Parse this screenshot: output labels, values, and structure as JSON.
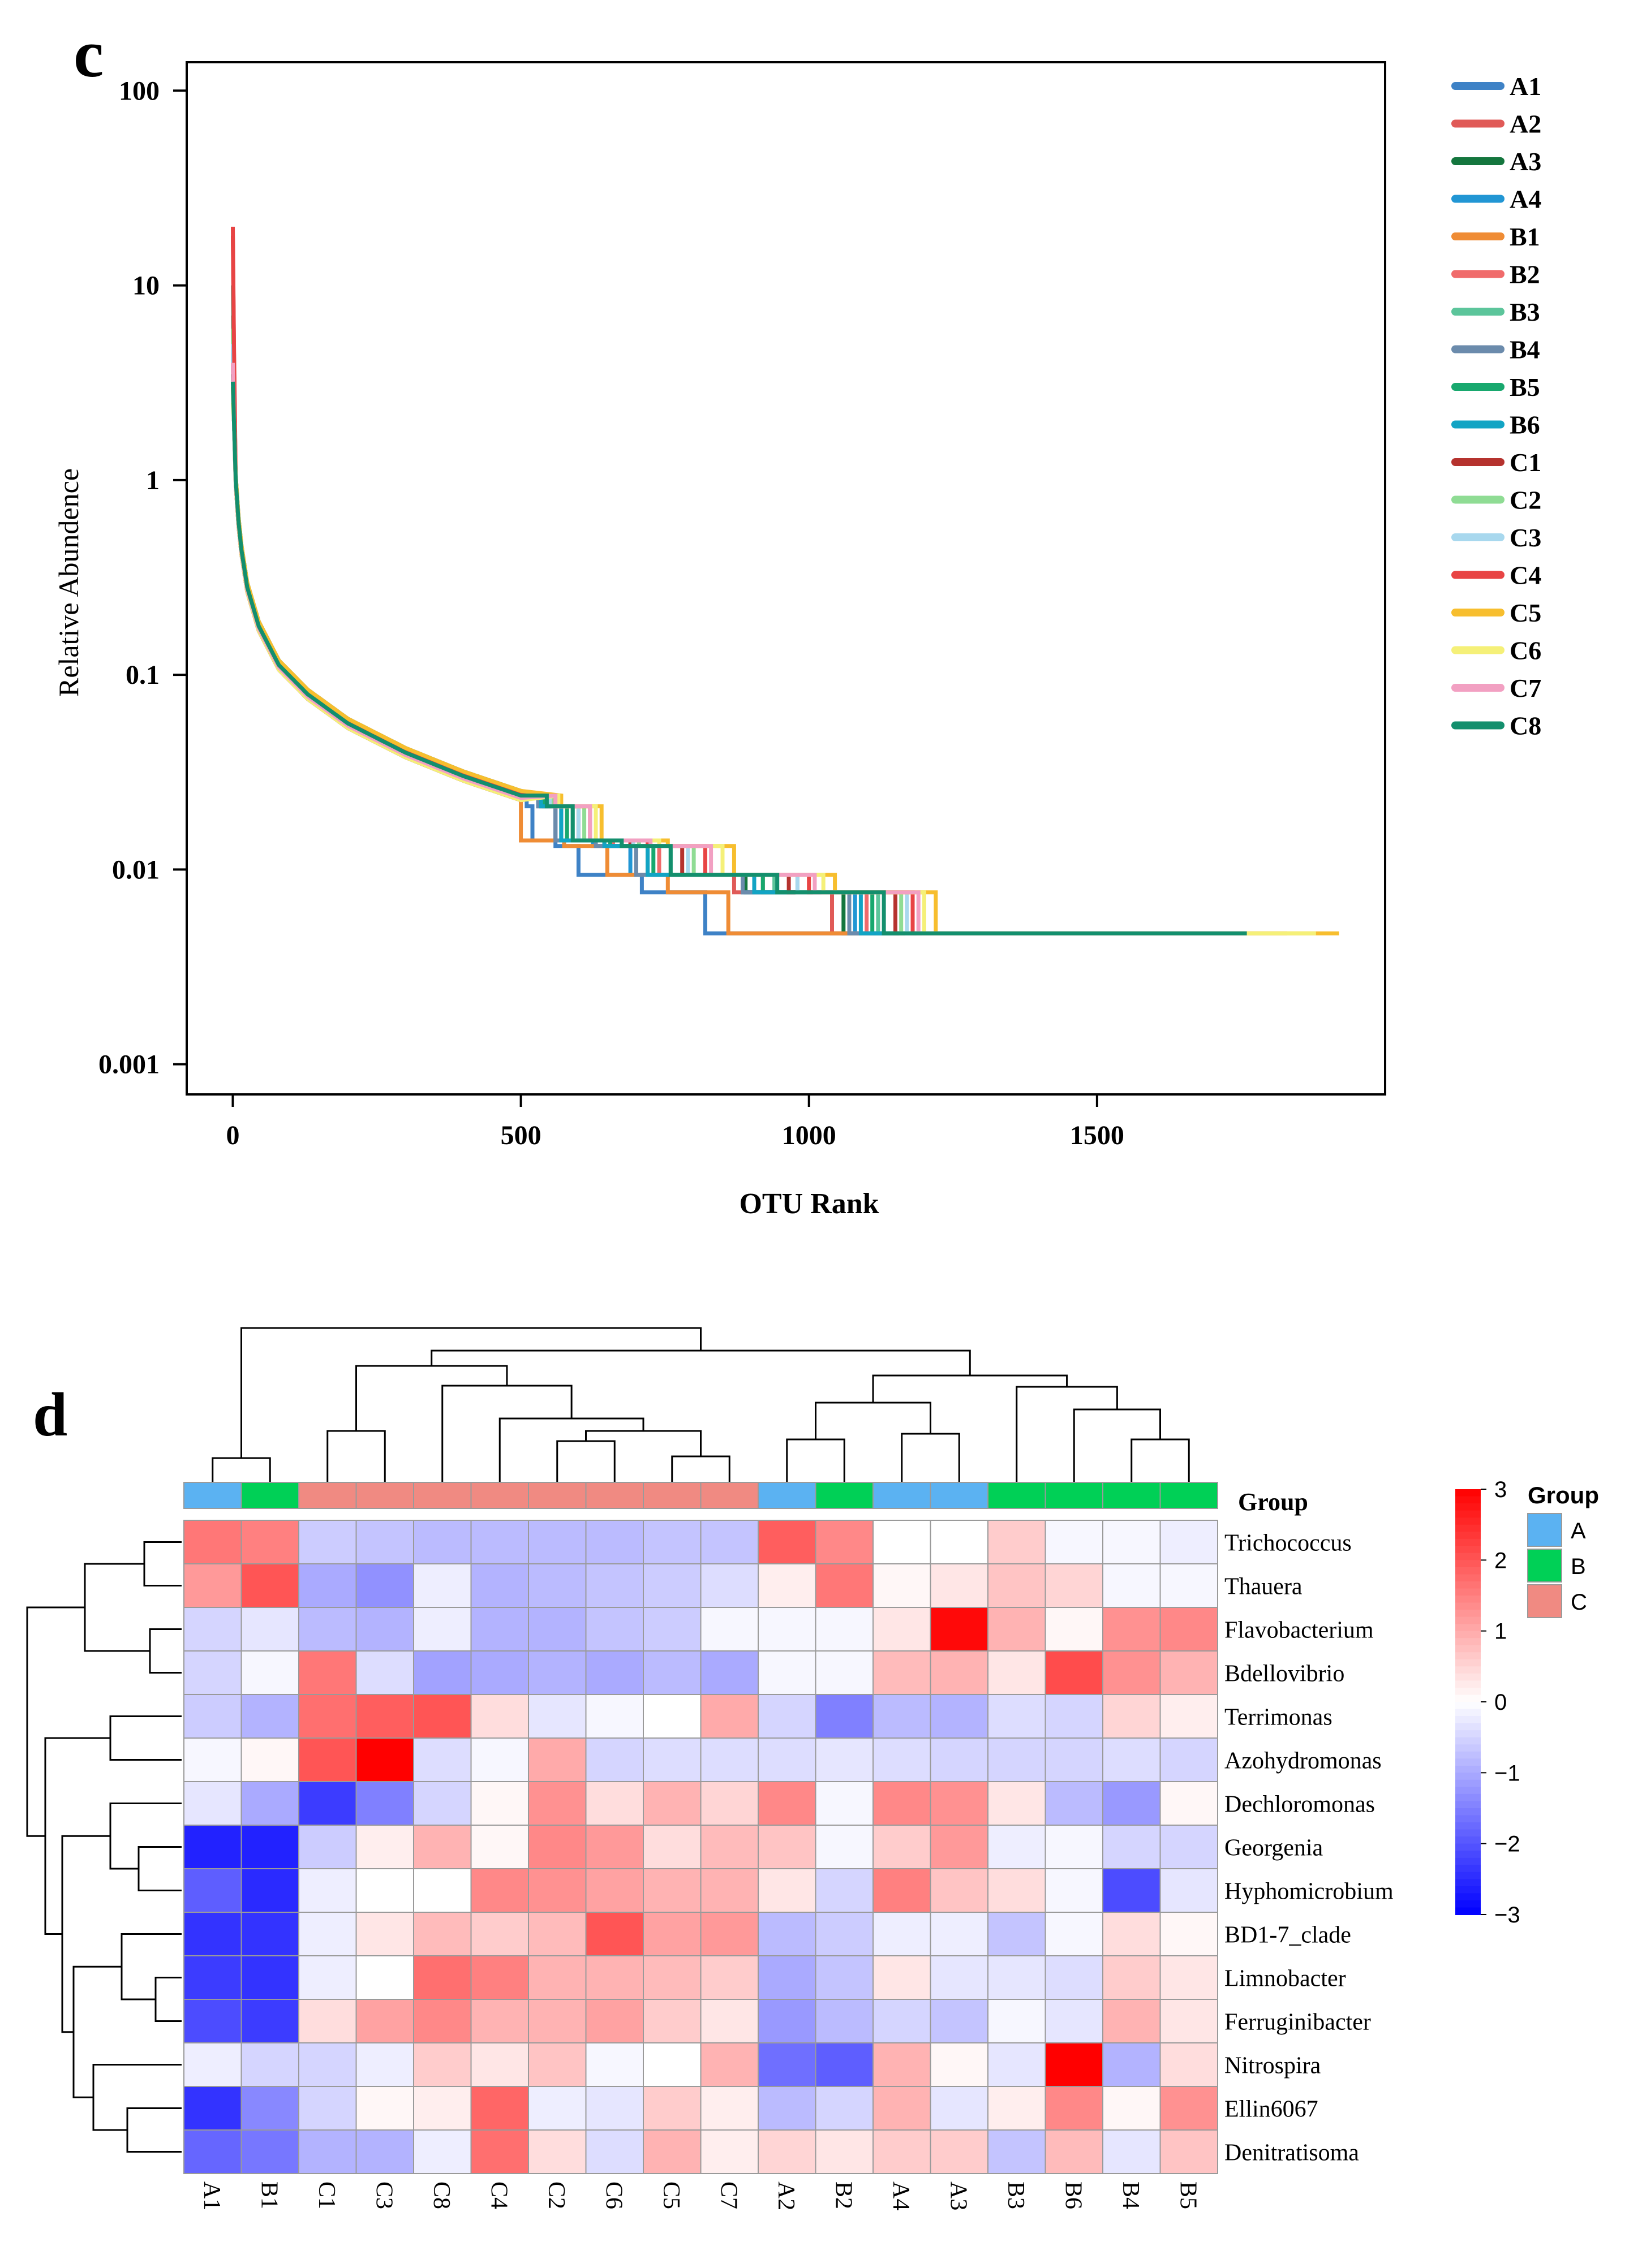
{
  "chart_data": [
    {
      "type": "line",
      "panel_label": "c",
      "title": "",
      "xlabel": "OTU Rank",
      "ylabel": "Relative Abundence",
      "yscale": "log",
      "xlim": [
        -80,
        2000
      ],
      "ylim": [
        0.0007,
        140
      ],
      "x_ticks": [
        0,
        500,
        1000,
        1500
      ],
      "x_tick_labels": [
        "0",
        "500",
        "1000",
        "1500"
      ],
      "y_ticks": [
        100,
        10,
        1,
        0.1,
        0.01,
        0.001
      ],
      "y_tick_labels": [
        "100",
        "10",
        "1",
        "0.1",
        "0.01",
        "0.001"
      ],
      "grid": false,
      "legend_position": "right",
      "series": [
        {
          "name": "A1",
          "color": "#3e82c6",
          "first_value": 6,
          "steps": [
            520,
            600,
            820
          ],
          "end_rank": 1760
        },
        {
          "name": "A2",
          "color": "#e05a57",
          "first_value": 4,
          "steps": [
            560,
            700,
            1040
          ],
          "end_rank": 1760
        },
        {
          "name": "A3",
          "color": "#14763e",
          "first_value": 3.5,
          "steps": [
            570,
            720,
            1060
          ],
          "end_rank": 1760
        },
        {
          "name": "A4",
          "color": "#2196d4",
          "first_value": 5,
          "steps": [
            560,
            690,
            1080
          ],
          "end_rank": 1760
        },
        {
          "name": "B1",
          "color": "#ef8c35",
          "first_value": 3,
          "steps": [
            500,
            650,
            860
          ],
          "end_rank": 1760
        },
        {
          "name": "B2",
          "color": "#f06b6b",
          "first_value": 7,
          "steps": [
            580,
            740,
            1100
          ],
          "end_rank": 1830
        },
        {
          "name": "B3",
          "color": "#5cc59b",
          "first_value": 10,
          "steps": [
            590,
            760,
            1120
          ],
          "end_rank": 1760
        },
        {
          "name": "B4",
          "color": "#6b8bac",
          "first_value": 4,
          "steps": [
            560,
            700,
            1070
          ],
          "end_rank": 1760
        },
        {
          "name": "B5",
          "color": "#18a86e",
          "first_value": 5,
          "steps": [
            580,
            730,
            1110
          ],
          "end_rank": 1760
        },
        {
          "name": "B6",
          "color": "#12a4c4",
          "first_value": 4.5,
          "steps": [
            570,
            720,
            1090
          ],
          "end_rank": 1760
        },
        {
          "name": "C1",
          "color": "#b5322e",
          "first_value": 18,
          "steps": [
            600,
            780,
            1150
          ],
          "end_rank": 1760
        },
        {
          "name": "C2",
          "color": "#8fdc94",
          "first_value": 6,
          "steps": [
            610,
            800,
            1160
          ],
          "end_rank": 1760
        },
        {
          "name": "C3",
          "color": "#a8d8ee",
          "first_value": 5,
          "steps": [
            600,
            790,
            1170
          ],
          "end_rank": 1760
        },
        {
          "name": "C4",
          "color": "#e84444",
          "first_value": 20,
          "steps": [
            620,
            820,
            1180
          ],
          "end_rank": 1760
        },
        {
          "name": "C5",
          "color": "#f7be2e",
          "first_value": 3,
          "steps": [
            640,
            870,
            1220
          ],
          "end_rank": 1920
        },
        {
          "name": "C6",
          "color": "#f5f078",
          "first_value": 2.5,
          "steps": [
            630,
            850,
            1200
          ],
          "end_rank": 1880
        },
        {
          "name": "C7",
          "color": "#f2a0c2",
          "first_value": 4,
          "steps": [
            620,
            830,
            1190
          ],
          "end_rank": 1760
        },
        {
          "name": "C8",
          "color": "#138f6d",
          "first_value": 3.2,
          "steps": [
            590,
            760,
            1130
          ],
          "end_rank": 1760
        }
      ]
    },
    {
      "type": "heatmap",
      "panel_label": "d",
      "columns": [
        "A1",
        "B1",
        "C1",
        "C3",
        "C8",
        "C4",
        "C2",
        "C6",
        "C5",
        "C7",
        "A2",
        "B2",
        "A4",
        "A3",
        "B3",
        "B6",
        "B4",
        "B5"
      ],
      "column_groups": [
        "A",
        "B",
        "C",
        "C",
        "C",
        "C",
        "C",
        "C",
        "C",
        "C",
        "A",
        "B",
        "A",
        "A",
        "B",
        "B",
        "B",
        "B"
      ],
      "rows": [
        "Trichococcus",
        "Thauera",
        "Flavobacterium",
        "Bdellovibrio",
        "Terrimonas",
        "Azohydromonas",
        "Dechloromonas",
        "Georgenia",
        "Hyphomicrobium",
        "BD1-7_clade",
        "Limnobacter",
        "Ferruginibacter",
        "Nitrospira",
        "Ellin6067",
        "Denitratisoma"
      ],
      "values": [
        [
          1.6,
          1.5,
          -0.6,
          -0.7,
          -0.8,
          -0.8,
          -0.8,
          -0.8,
          -0.7,
          -0.7,
          1.9,
          1.4,
          0.0,
          0.0,
          0.6,
          -0.1,
          -0.1,
          -0.2
        ],
        [
          1.2,
          2.0,
          -1.0,
          -1.3,
          -0.2,
          -0.9,
          -0.8,
          -0.7,
          -0.6,
          -0.4,
          0.2,
          1.6,
          0.1,
          0.3,
          0.7,
          0.5,
          -0.1,
          -0.1
        ],
        [
          -0.5,
          -0.3,
          -0.8,
          -0.9,
          -0.2,
          -0.9,
          -0.9,
          -0.7,
          -0.6,
          -0.1,
          -0.1,
          -0.1,
          0.3,
          2.9,
          0.9,
          0.1,
          1.3,
          1.4
        ],
        [
          -0.5,
          -0.1,
          1.6,
          -0.4,
          -1.1,
          -1.0,
          -0.9,
          -1.0,
          -0.8,
          -1.0,
          -0.1,
          -0.1,
          0.8,
          0.9,
          0.3,
          2.1,
          1.3,
          0.9
        ],
        [
          -0.6,
          -0.9,
          1.7,
          1.9,
          2.0,
          0.4,
          -0.3,
          -0.1,
          0.0,
          1.0,
          -0.5,
          -1.5,
          -0.8,
          -0.9,
          -0.4,
          -0.5,
          0.5,
          0.2
        ],
        [
          -0.1,
          0.1,
          2.0,
          3.0,
          -0.4,
          -0.1,
          1.0,
          -0.5,
          -0.4,
          -0.4,
          -0.4,
          -0.3,
          -0.4,
          -0.5,
          -0.5,
          -0.5,
          -0.4,
          -0.5
        ],
        [
          -0.3,
          -1.0,
          -2.3,
          -1.5,
          -0.5,
          0.1,
          1.3,
          0.4,
          0.9,
          0.5,
          1.4,
          -0.1,
          1.4,
          1.3,
          0.3,
          -0.8,
          -1.2,
          0.1
        ],
        [
          -2.6,
          -2.6,
          -0.6,
          0.2,
          0.9,
          0.1,
          1.4,
          1.2,
          0.4,
          0.8,
          0.7,
          -0.1,
          0.6,
          1.2,
          -0.2,
          -0.1,
          -0.5,
          -0.5
        ],
        [
          -1.9,
          -2.5,
          -0.2,
          0.0,
          0.0,
          1.4,
          1.3,
          1.1,
          0.9,
          0.9,
          0.3,
          -0.5,
          1.5,
          0.7,
          0.4,
          -0.1,
          -2.1,
          -0.3
        ],
        [
          -2.4,
          -2.4,
          -0.2,
          0.3,
          0.8,
          0.6,
          0.8,
          2.0,
          1.1,
          1.2,
          -0.8,
          -0.6,
          -0.2,
          -0.2,
          -0.7,
          -0.1,
          0.4,
          0.1
        ],
        [
          -2.3,
          -2.4,
          -0.2,
          0.0,
          1.7,
          1.5,
          0.9,
          0.9,
          0.8,
          0.6,
          -1.0,
          -0.7,
          0.3,
          -0.3,
          -0.3,
          -0.4,
          0.6,
          0.3
        ],
        [
          -2.1,
          -2.3,
          0.4,
          1.1,
          1.4,
          0.9,
          0.9,
          1.1,
          0.6,
          0.3,
          -1.2,
          -0.8,
          -0.5,
          -0.7,
          -0.1,
          -0.3,
          0.9,
          0.3
        ],
        [
          -0.2,
          -0.5,
          -0.5,
          -0.2,
          0.6,
          0.3,
          0.7,
          -0.1,
          0.0,
          0.9,
          -1.7,
          -1.9,
          0.9,
          0.1,
          -0.3,
          3.0,
          -0.9,
          0.4
        ],
        [
          -2.4,
          -1.4,
          -0.5,
          0.1,
          0.2,
          1.8,
          -0.2,
          -0.3,
          0.6,
          0.2,
          -0.8,
          -0.5,
          0.9,
          -0.3,
          0.2,
          1.4,
          0.1,
          1.3
        ],
        [
          -1.8,
          -1.6,
          -0.9,
          -0.9,
          -0.2,
          1.7,
          0.4,
          -0.4,
          0.9,
          0.2,
          0.5,
          0.3,
          0.6,
          0.6,
          -0.7,
          0.8,
          -0.3,
          0.7
        ]
      ],
      "color_scale": {
        "min": -3,
        "max": 3,
        "low_color": "#0000ff",
        "mid_color": "#ffffff",
        "high_color": "#ff0000"
      },
      "scale_ticks": [
        "3",
        "2",
        "1",
        "0",
        "-1",
        "-2",
        "-3"
      ],
      "group_row_label": "Group",
      "group_legend_title": "Group",
      "groups": [
        {
          "name": "A",
          "color": "#5bb2f2"
        },
        {
          "name": "B",
          "color": "#00d056"
        },
        {
          "name": "C",
          "color": "#f08a82"
        }
      ]
    }
  ]
}
